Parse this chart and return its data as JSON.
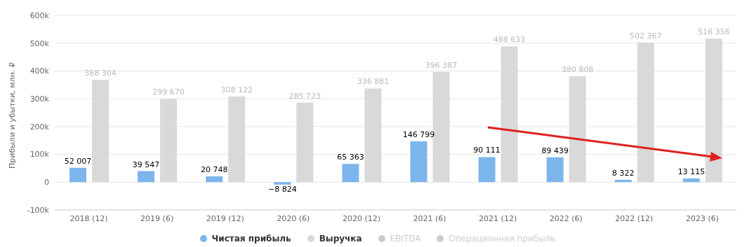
{
  "chart_data": {
    "type": "bar",
    "ylabel": "Прибыли и убытки, млн. ₽",
    "categories": [
      "2018 (12)",
      "2019 (6)",
      "2019 (12)",
      "2020 (6)",
      "2020 (12)",
      "2021 (6)",
      "2021 (12)",
      "2022 (6)",
      "2022 (12)",
      "2023 (6)"
    ],
    "series": [
      {
        "name": "Чистая прибыль",
        "color": "#7cb5ec",
        "values": [
          52007,
          39547,
          20748,
          -8824,
          65363,
          146799,
          90111,
          89439,
          8322,
          13115
        ],
        "value_labels": [
          "52 007",
          "39 547",
          "20 748",
          "−8 824",
          "65 363",
          "146 799",
          "90 111",
          "89 439",
          "8 322",
          "13 115"
        ]
      },
      {
        "name": "Выручка",
        "color": "#d9d9d9",
        "values": [
          368304,
          299670,
          308122,
          285723,
          336881,
          396387,
          488633,
          380808,
          502367,
          516356
        ],
        "value_labels": [
          "368 304",
          "299 670",
          "308 122",
          "285 723",
          "336 881",
          "396 387",
          "488 633",
          "380 808",
          "502 367",
          "516 356"
        ]
      },
      {
        "name": "EBITDA",
        "color": "#cccccc",
        "values": [
          null,
          null,
          null,
          null,
          null,
          null,
          null,
          null,
          null,
          null
        ]
      },
      {
        "name": "Операционная прибыль",
        "color": "#cccccc",
        "values": [
          null,
          null,
          null,
          null,
          null,
          null,
          null,
          null,
          null,
          null
        ]
      }
    ],
    "ylim": [
      -100000,
      600000
    ],
    "yticks": [
      {
        "value": -100000,
        "label": "-100k"
      },
      {
        "value": 0,
        "label": "0"
      },
      {
        "value": 100000,
        "label": "100k"
      },
      {
        "value": 200000,
        "label": "200k"
      },
      {
        "value": 300000,
        "label": "300k"
      },
      {
        "value": 400000,
        "label": "400k"
      },
      {
        "value": 500000,
        "label": "500k"
      },
      {
        "value": 600000,
        "label": "600k"
      }
    ],
    "grid": "y",
    "legend": "bottom"
  }
}
